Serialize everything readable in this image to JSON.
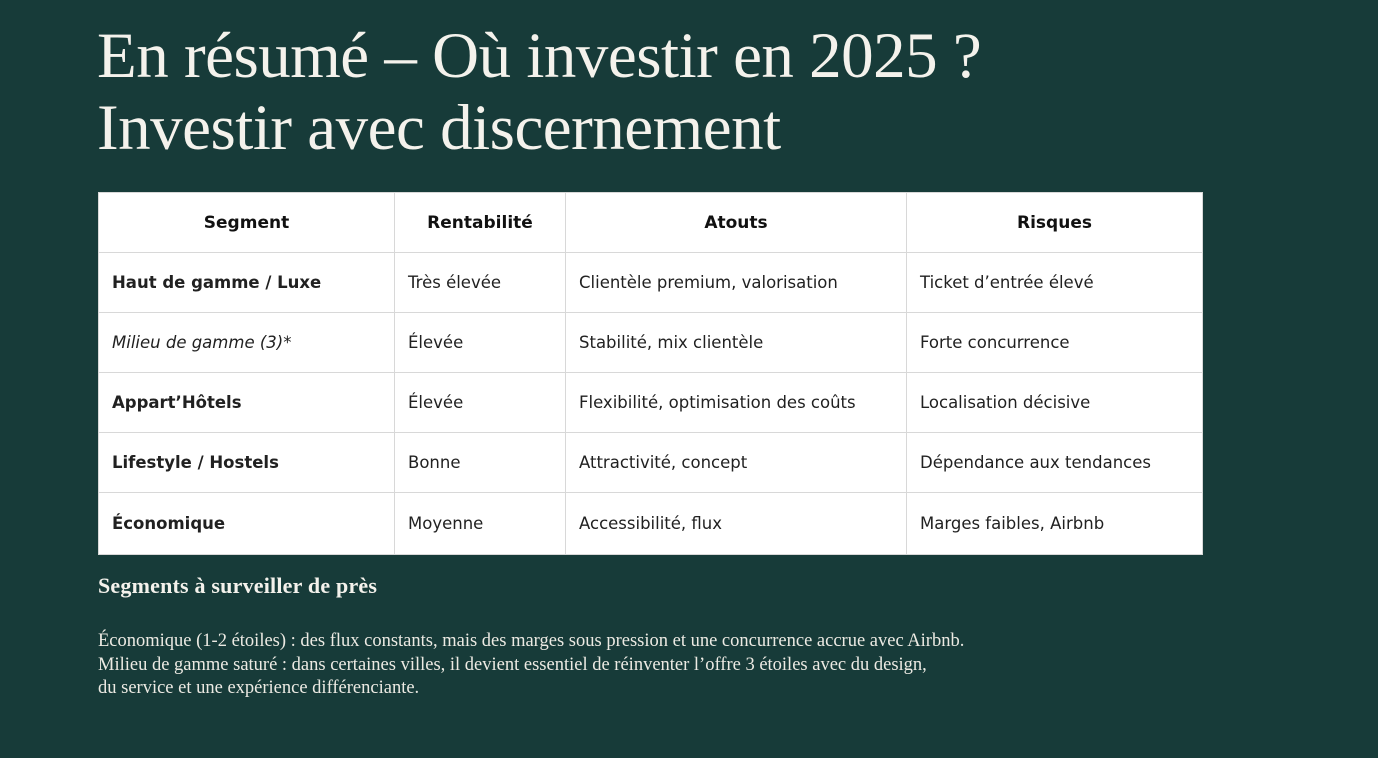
{
  "slide": {
    "title_line1": "En résumé – Où investir en 2025 ?",
    "title_line2": "Investir avec discernement"
  },
  "table": {
    "headers": [
      "Segment",
      "Rentabilité",
      "Atouts",
      "Risques"
    ],
    "rows": [
      {
        "segment_style": "bold",
        "cells": [
          "Haut de gamme / Luxe",
          "Très élevée",
          "Clientèle premium, valorisation",
          "Ticket d’entrée élevé"
        ]
      },
      {
        "segment_style": "italic",
        "cells": [
          "Milieu de gamme (3)*",
          "Élevée",
          "Stabilité, mix clientèle",
          "Forte concurrence"
        ]
      },
      {
        "segment_style": "bold",
        "cells": [
          "Appart’Hôtels",
          "Élevée",
          "Flexibilité, optimisation des coûts",
          "Localisation décisive"
        ]
      },
      {
        "segment_style": "bold",
        "cells": [
          "Lifestyle / Hostels",
          "Bonne",
          "Attractivité, concept",
          "Dépendance aux tendances"
        ]
      },
      {
        "segment_style": "bold",
        "cells": [
          "Économique",
          "Moyenne",
          "Accessibilité, flux",
          "Marges faibles, Airbnb"
        ]
      }
    ]
  },
  "notes": {
    "heading": "Segments à surveiller de près",
    "lines": [
      "Économique (1-2 étoiles) : des flux constants, mais des marges sous pression et une concurrence accrue avec Airbnb.",
      "Milieu de gamme saturé : dans certaines villes, il devient essentiel de réinventer l’offre 3 étoiles avec du design,",
      "du service et une expérience différenciante."
    ]
  },
  "colors": {
    "background": "#173B39",
    "title_text": "#F4F2EC",
    "notes_text": "#ECEAE3",
    "table_background": "#FFFFFF",
    "table_text": "#212121",
    "table_border": "#D8D8D8"
  }
}
